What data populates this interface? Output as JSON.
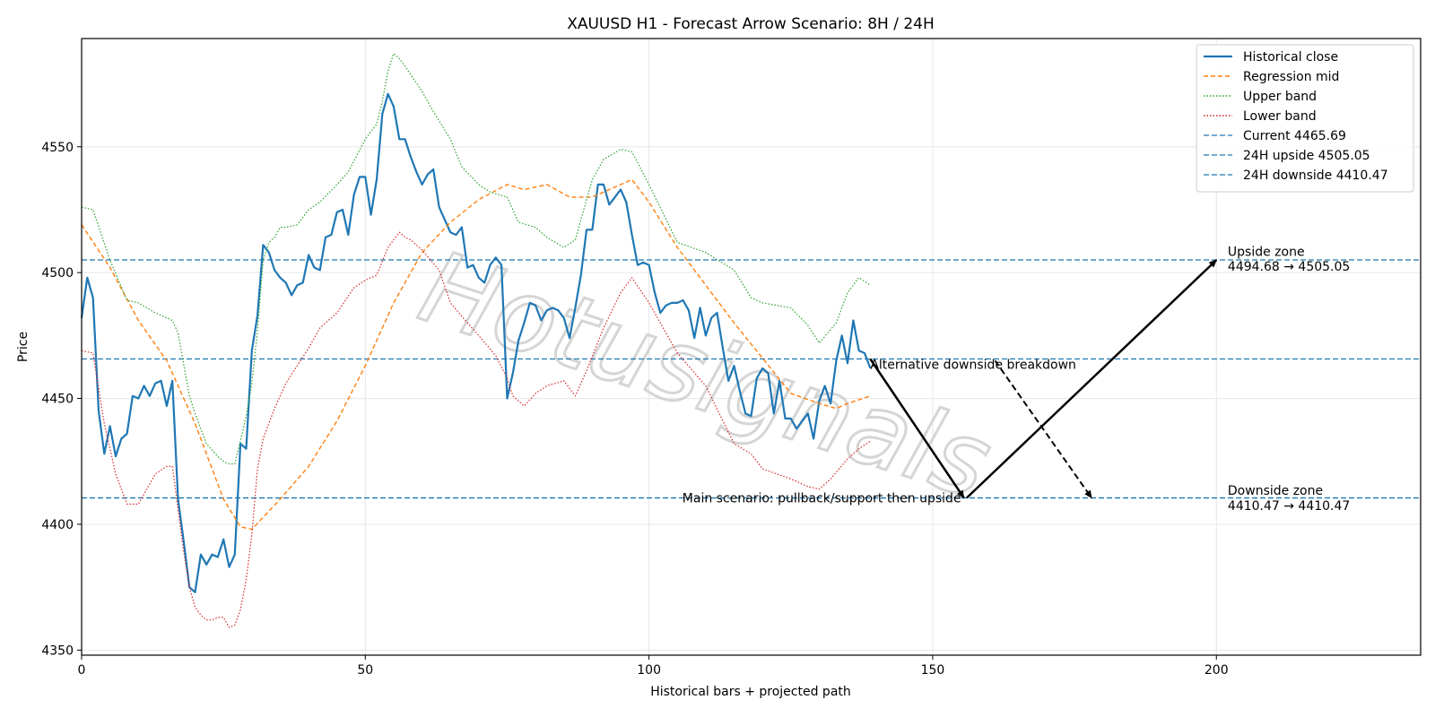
{
  "chart_data": {
    "type": "line",
    "title": "XAUUSD H1 - Forecast Arrow Scenario: 8H / 24H",
    "xlabel": "Historical bars + projected path",
    "ylabel": "Price",
    "xlim": [
      0,
      236
    ],
    "ylim": [
      4348,
      4593
    ],
    "xticks": [
      0,
      50,
      100,
      150,
      200
    ],
    "yticks": [
      4350,
      4400,
      4450,
      4500,
      4550
    ],
    "grid": true,
    "legend_position": "top-right",
    "watermark": "Hotusignals",
    "colors": {
      "historical": "#1f77b4",
      "regression": "#ff7f0e",
      "upper": "#2ca02c",
      "lower": "#d62728",
      "hline": "#1f77b4",
      "arrow": "#000000"
    },
    "series": [
      {
        "name": "Historical close",
        "style": "solid",
        "x": [
          0,
          1,
          2,
          3,
          4,
          5,
          6,
          7,
          8,
          9,
          10,
          11,
          12,
          13,
          14,
          15,
          16,
          17,
          18,
          19,
          20,
          21,
          22,
          23,
          24,
          25,
          26,
          27,
          28,
          29,
          30,
          31,
          32,
          33,
          34,
          35,
          36,
          37,
          38,
          39,
          40,
          41,
          42,
          43,
          44,
          45,
          46,
          47,
          48,
          49,
          50,
          51,
          52,
          53,
          54,
          55,
          56,
          57,
          58,
          59,
          60,
          61,
          62,
          63,
          64,
          65,
          66,
          67,
          68,
          69,
          70,
          71,
          72,
          73,
          74,
          75,
          76,
          77,
          78,
          79,
          80,
          81,
          82,
          83,
          84,
          85,
          86,
          87,
          88,
          89,
          90,
          91,
          92,
          93,
          94,
          95,
          96,
          97,
          98,
          99,
          100,
          101,
          102,
          103,
          104,
          105,
          106,
          107,
          108,
          109,
          110,
          111,
          112,
          113,
          114,
          115,
          116,
          117,
          118,
          119,
          120,
          121,
          122,
          123,
          124,
          125,
          126,
          127,
          128,
          129,
          130,
          131,
          132,
          133,
          134,
          135,
          136,
          137,
          138,
          139
        ],
        "y": [
          4482,
          4498,
          4490,
          4445,
          4428,
          4439,
          4427,
          4434,
          4436,
          4451,
          4450,
          4455,
          4451,
          4456,
          4457,
          4447,
          4457,
          4410,
          4393,
          4375,
          4373,
          4388,
          4384,
          4388,
          4387,
          4394,
          4383,
          4388,
          4432,
          4430,
          4469,
          4483,
          4511,
          4508,
          4501,
          4498,
          4496,
          4491,
          4495,
          4496,
          4507,
          4502,
          4501,
          4514,
          4515,
          4524,
          4525,
          4515,
          4531,
          4538,
          4538,
          4523,
          4537,
          4563,
          4571,
          4566,
          4553,
          4553,
          4546,
          4540,
          4535,
          4539,
          4541,
          4526,
          4521,
          4516,
          4515,
          4518,
          4502,
          4503,
          4498,
          4496,
          4503,
          4506,
          4503,
          4450,
          4460,
          4473,
          4480,
          4488,
          4487,
          4481,
          4485,
          4486,
          4485,
          4482,
          4474,
          4486,
          4499,
          4517,
          4517,
          4535,
          4535,
          4527,
          4530,
          4533,
          4528,
          4515,
          4503,
          4504,
          4503,
          4492,
          4484,
          4487,
          4488,
          4488,
          4489,
          4485,
          4474,
          4486,
          4475,
          4482,
          4484,
          4470,
          4457,
          4463,
          4453,
          4444,
          4443,
          4458,
          4462,
          4460,
          4444,
          4457,
          4442,
          4442,
          4438,
          4441,
          4444,
          4434,
          4449,
          4455,
          4448,
          4465,
          4475,
          4464,
          4481,
          4469,
          4468,
          4462
        ]
      },
      {
        "name": "Regression mid",
        "style": "dashed",
        "x": [
          0,
          5,
          10,
          15,
          20,
          25,
          28,
          30,
          35,
          40,
          45,
          50,
          55,
          60,
          65,
          70,
          75,
          78,
          82,
          86,
          90,
          95,
          97,
          100,
          105,
          110,
          115,
          120,
          125,
          130,
          133,
          135,
          139
        ],
        "y": [
          4519,
          4502,
          4481,
          4465,
          4440,
          4410,
          4399,
          4398,
          4410,
          4423,
          4441,
          4463,
          4488,
          4508,
          4520,
          4529,
          4535,
          4533,
          4535,
          4530,
          4530,
          4535,
          4537,
          4528,
          4510,
          4495,
          4480,
          4466,
          4452,
          4448,
          4446,
          4448,
          4451
        ]
      },
      {
        "name": "Upper band",
        "style": "dotted",
        "x": [
          0,
          2,
          5,
          8,
          10,
          13,
          16,
          17,
          19,
          20,
          22,
          24,
          25,
          26,
          27,
          28,
          29,
          30,
          31,
          32,
          33,
          34,
          35,
          36,
          38,
          40,
          42,
          45,
          47,
          50,
          52,
          53,
          54,
          55,
          56,
          57,
          60,
          62,
          65,
          67,
          70,
          72,
          75,
          77,
          80,
          82,
          85,
          87,
          90,
          92,
          95,
          97,
          100,
          105,
          110,
          115,
          118,
          120,
          125,
          128,
          130,
          133,
          135,
          137,
          139
        ],
        "y": [
          4526,
          4525,
          4505,
          4489,
          4488,
          4484,
          4481,
          4476,
          4451,
          4444,
          4432,
          4427,
          4425,
          4424,
          4424,
          4433,
          4443,
          4456,
          4477,
          4505,
          4512,
          4514,
          4518,
          4518,
          4519,
          4525,
          4528,
          4535,
          4540,
          4553,
          4559,
          4568,
          4580,
          4587,
          4585,
          4582,
          4572,
          4564,
          4553,
          4542,
          4535,
          4532,
          4530,
          4520,
          4518,
          4514,
          4510,
          4513,
          4537,
          4545,
          4549,
          4548,
          4535,
          4512,
          4508,
          4501,
          4490,
          4488,
          4486,
          4479,
          4472,
          4480,
          4492,
          4498,
          4495
        ]
      },
      {
        "name": "Lower band",
        "style": "dotted",
        "x": [
          0,
          2,
          4,
          6,
          8,
          10,
          13,
          15,
          16,
          17,
          18,
          19,
          20,
          21,
          22,
          23,
          24,
          25,
          26,
          27,
          28,
          29,
          30,
          31,
          32,
          34,
          36,
          38,
          40,
          42,
          45,
          48,
          50,
          52,
          54,
          55,
          56,
          57,
          58,
          60,
          63,
          65,
          68,
          70,
          73,
          75,
          76,
          78,
          80,
          82,
          85,
          87,
          89,
          92,
          95,
          97,
          100,
          105,
          110,
          115,
          118,
          120,
          125,
          128,
          130,
          132,
          135,
          137,
          139
        ],
        "y": [
          4469,
          4468,
          4440,
          4420,
          4408,
          4408,
          4420,
          4423,
          4423,
          4406,
          4389,
          4375,
          4367,
          4364,
          4362,
          4362,
          4363,
          4363,
          4359,
          4360,
          4366,
          4378,
          4396,
          4422,
          4434,
          4446,
          4456,
          4463,
          4470,
          4478,
          4484,
          4494,
          4497,
          4499,
          4510,
          4513,
          4516,
          4514,
          4513,
          4509,
          4501,
          4488,
          4480,
          4475,
          4467,
          4458,
          4451,
          4447,
          4452,
          4455,
          4457,
          4451,
          4461,
          4478,
          4492,
          4498,
          4488,
          4468,
          4455,
          4432,
          4428,
          4422,
          4418,
          4415,
          4414,
          4418,
          4426,
          4430,
          4433
        ]
      }
    ],
    "hlines": [
      {
        "name": "Current 4465.69",
        "y": 4465.69
      },
      {
        "name": "24H upside 4505.05",
        "y": 4505.05
      },
      {
        "name": "24H downside 4410.47",
        "y": 4410.47
      }
    ],
    "arrows": [
      {
        "from": [
          139,
          4465.69
        ],
        "to": [
          155.5,
          4410.5
        ],
        "style": "solid"
      },
      {
        "from": [
          156,
          4410.5
        ],
        "to": [
          200,
          4505
        ],
        "style": "solid"
      },
      {
        "from": [
          161,
          4465
        ],
        "to": [
          178,
          4410.5
        ],
        "style": "dashed"
      }
    ],
    "annotations": [
      {
        "text": "Alternative downside breakdown",
        "x": 139,
        "y": 4463.5,
        "anchor": "start"
      },
      {
        "text": "Main scenario: pullback/support then upside",
        "x": 155,
        "y": 4410.5,
        "anchor": "end"
      },
      {
        "text": "Upside zone",
        "x": 202,
        "y": 4508.5,
        "anchor": "start"
      },
      {
        "text": "4494.68 → 4505.05",
        "x": 202,
        "y": 4502.5,
        "anchor": "start"
      },
      {
        "text": "Downside zone",
        "x": 202,
        "y": 4413.5,
        "anchor": "start"
      },
      {
        "text": "4410.47 → 4410.47",
        "x": 202,
        "y": 4407.5,
        "anchor": "start"
      }
    ]
  }
}
